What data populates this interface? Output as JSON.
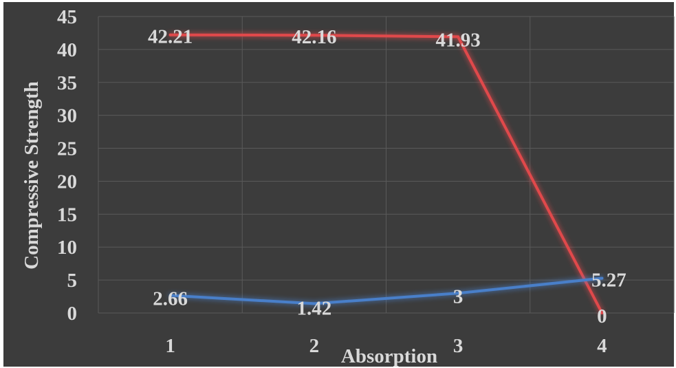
{
  "chart_data": {
    "type": "line",
    "title": "",
    "xlabel": "Absorption",
    "ylabel": "Compressive Strength",
    "categories": [
      "1",
      "2",
      "3",
      "4"
    ],
    "yticks": [
      "0",
      "5",
      "10",
      "15",
      "20",
      "25",
      "30",
      "35",
      "40",
      "45"
    ],
    "ylim": [
      0,
      45
    ],
    "grid": true,
    "legend": "none",
    "series": [
      {
        "values": [
          42.21,
          42.16,
          41.93,
          0
        ],
        "labels": [
          "42.21",
          "42.16",
          "41.93",
          "0"
        ],
        "color": "#e0484b"
      },
      {
        "values": [
          2.66,
          1.42,
          3,
          5.27
        ],
        "labels": [
          "2.66",
          "1.42",
          "3",
          "5.27"
        ],
        "color": "#4a7fc9"
      }
    ]
  },
  "colors": {
    "background": "#3c3c3c",
    "gridline": "#5a5a5a",
    "text": "#d9d9d9"
  }
}
